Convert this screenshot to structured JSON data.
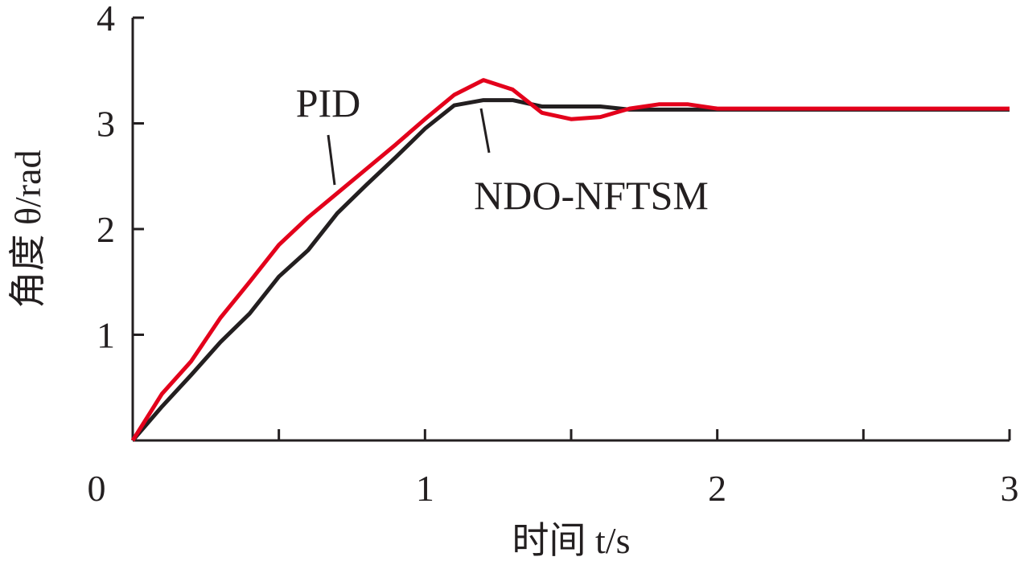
{
  "chart_data": {
    "type": "line",
    "xlabel": "时间 t/s",
    "ylabel": "角度 θ/rad",
    "x": [
      0,
      0.1,
      0.2,
      0.3,
      0.4,
      0.5,
      0.6,
      0.7,
      0.8,
      0.9,
      1.0,
      1.1,
      1.2,
      1.3,
      1.4,
      1.5,
      1.6,
      1.7,
      1.8,
      1.9,
      2.0,
      2.1,
      2.2,
      2.3,
      2.4,
      2.5,
      2.6,
      2.7,
      2.8,
      2.9,
      3.0
    ],
    "series": [
      {
        "name": "NDO-NFTSM",
        "color": "#231f20",
        "values": [
          0,
          0.32,
          0.62,
          0.93,
          1.2,
          1.55,
          1.8,
          2.15,
          2.42,
          2.68,
          2.95,
          3.17,
          3.22,
          3.22,
          3.16,
          3.16,
          3.16,
          3.13,
          3.13,
          3.13,
          3.13,
          3.13,
          3.13,
          3.13,
          3.13,
          3.13,
          3.13,
          3.13,
          3.13,
          3.13,
          3.13
        ]
      },
      {
        "name": "PID",
        "color": "#e3001b",
        "values": [
          0,
          0.44,
          0.75,
          1.16,
          1.5,
          1.85,
          2.11,
          2.34,
          2.57,
          2.8,
          3.04,
          3.27,
          3.41,
          3.32,
          3.1,
          3.04,
          3.06,
          3.14,
          3.18,
          3.18,
          3.14,
          3.14,
          3.14,
          3.14,
          3.14,
          3.14,
          3.14,
          3.14,
          3.14,
          3.14,
          3.14
        ]
      }
    ],
    "xlim": [
      0,
      3
    ],
    "ylim": [
      0,
      4
    ],
    "xticks": [
      0,
      1,
      2,
      3
    ],
    "xminor_ticks": [
      0.5,
      1.5,
      2.5
    ],
    "yticks": [
      1,
      2,
      3,
      4
    ],
    "grid": false
  }
}
